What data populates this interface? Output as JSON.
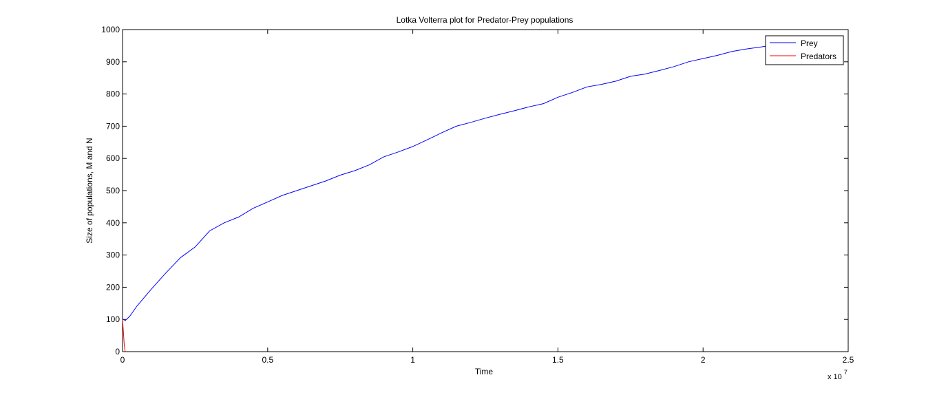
{
  "chart_data": {
    "type": "line",
    "title": "Lotka Volterra plot for Predator-Prey populations",
    "xlabel": "Time",
    "ylabel": "Size of populations, M and N",
    "x_multiplier_label": "x 10",
    "x_multiplier_exponent": "7",
    "x_multiplier": 10000000,
    "xlim": [
      0,
      2.5
    ],
    "ylim": [
      0,
      1000
    ],
    "x_ticks": [
      0,
      0.5,
      1,
      1.5,
      2,
      2.5
    ],
    "x_tick_labels": [
      "0",
      "0.5",
      "1",
      "1.5",
      "2",
      "2.5"
    ],
    "y_ticks": [
      0,
      100,
      200,
      300,
      400,
      500,
      600,
      700,
      800,
      900,
      1000
    ],
    "y_tick_labels": [
      "0",
      "100",
      "200",
      "300",
      "400",
      "500",
      "600",
      "700",
      "800",
      "900",
      "1000"
    ],
    "legend_position": "top-right",
    "grid": false,
    "series": [
      {
        "name": "Prey",
        "color": "#0000ff",
        "x": [
          0,
          0.01,
          0.025,
          0.05,
          0.1,
          0.15,
          0.2,
          0.25,
          0.3,
          0.35,
          0.4,
          0.45,
          0.5,
          0.55,
          0.6,
          0.65,
          0.7,
          0.75,
          0.8,
          0.85,
          0.9,
          0.95,
          1.0,
          1.05,
          1.1,
          1.15,
          1.2,
          1.25,
          1.3,
          1.35,
          1.4,
          1.45,
          1.5,
          1.55,
          1.6,
          1.65,
          1.7,
          1.75,
          1.8,
          1.85,
          1.9,
          1.95,
          2.0,
          2.05,
          2.1,
          2.15,
          2.2,
          2.22
        ],
        "y": [
          100,
          97,
          110,
          142,
          195,
          245,
          292,
          325,
          375,
          400,
          418,
          445,
          465,
          485,
          500,
          515,
          530,
          548,
          562,
          580,
          605,
          620,
          637,
          658,
          680,
          700,
          712,
          725,
          737,
          748,
          760,
          770,
          790,
          805,
          822,
          830,
          840,
          855,
          862,
          873,
          885,
          900,
          910,
          920,
          932,
          940,
          946,
          949
        ]
      },
      {
        "name": "Predators",
        "color": "#ff0000",
        "x": [
          0,
          0.003,
          0.006,
          0.009
        ],
        "y": [
          100,
          60,
          20,
          0
        ]
      }
    ]
  }
}
